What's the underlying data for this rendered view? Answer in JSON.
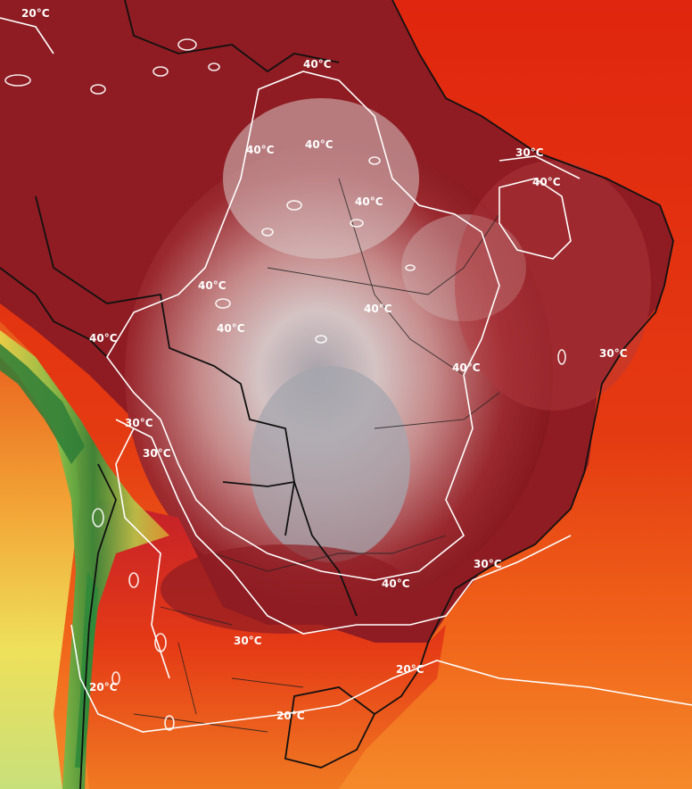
{
  "map": {
    "labels": {
      "t40a": "40°C",
      "t40b": "40°C",
      "t40c": "40°C",
      "t40d": "40°C",
      "t40e": "40°C",
      "t40f": "40°C",
      "t40g": "40°C",
      "t40h": "40°C",
      "t40i": "40°C",
      "t40j": "40°C",
      "t40k": "40°C",
      "t30a": "30°C",
      "t30b": "30°C",
      "t30c": "30°C",
      "t30d": "30°C",
      "t30e": "30°C",
      "t30f": "30°C",
      "t20a": "20°C",
      "t20b": "20°C",
      "t20c": "20°C",
      "t20d": "20°C"
    },
    "colors": {
      "ocean_hot": "#e02a10",
      "ocean_warm": "#f06a18",
      "land_extreme": "#8a1a1f",
      "land_peak": "#e8dcdc",
      "land_grey": "#a9a9b0",
      "andes_green": "#3f8f3a",
      "cool_yellow": "#e8e24a",
      "isotherm": "#ffffff",
      "border": "#111111"
    }
  }
}
